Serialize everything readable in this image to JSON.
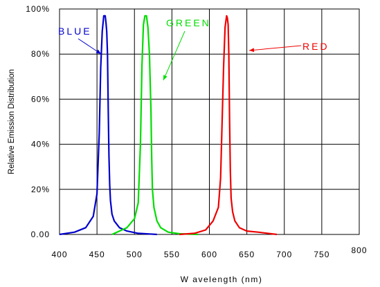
{
  "chart_data": {
    "type": "line",
    "xlabel": "W avelength (nm)",
    "ylabel": "Relative Emission Distribution",
    "xlim": [
      400,
      800
    ],
    "ylim": [
      0,
      100
    ],
    "x_ticks": [
      "400",
      "450",
      "500",
      "550",
      "600",
      "650",
      "700",
      "750",
      "800"
    ],
    "y_ticks": [
      "0.00",
      "20%",
      "40%",
      "60%",
      "80%",
      "100%"
    ],
    "grid": true,
    "legend": "inline labels with arrows",
    "series": [
      {
        "name": "BLUE",
        "color": "#0000cc",
        "x": [
          400,
          420,
          435,
          445,
          450,
          453,
          455,
          457,
          459,
          461,
          462,
          463,
          464,
          465,
          466,
          467,
          468,
          470,
          473,
          480,
          490,
          505,
          520,
          530
        ],
        "y": [
          0,
          1,
          3,
          8,
          18,
          45,
          74,
          90,
          97,
          97,
          94,
          90,
          80,
          55,
          35,
          22,
          15,
          9,
          6,
          3,
          1.5,
          0.5,
          0.2,
          0
        ],
        "label_text": "BLUE"
      },
      {
        "name": "GREEN",
        "color": "#00dd00",
        "x": [
          470,
          480,
          490,
          500,
          505,
          508,
          510,
          512,
          514,
          516,
          518,
          520,
          522,
          523,
          524,
          526,
          530,
          535,
          545,
          560,
          585
        ],
        "y": [
          0,
          1.5,
          3,
          7,
          14,
          40,
          75,
          93,
          97,
          97,
          92,
          80,
          55,
          35,
          20,
          12,
          6,
          3,
          1,
          0.3,
          0
        ],
        "label_text": "GREEN"
      },
      {
        "name": "RED",
        "color": "#ee0000",
        "x": [
          560,
          580,
          595,
          605,
          612,
          615,
          617,
          619,
          621,
          623,
          624,
          625,
          626,
          627,
          628,
          629,
          631,
          634,
          640,
          650,
          665,
          690
        ],
        "y": [
          0,
          0.5,
          2,
          6,
          12,
          25,
          50,
          75,
          92,
          97,
          96,
          93,
          80,
          50,
          28,
          16,
          10,
          6,
          3,
          1.5,
          1,
          0
        ],
        "label_text": "RED"
      }
    ]
  }
}
